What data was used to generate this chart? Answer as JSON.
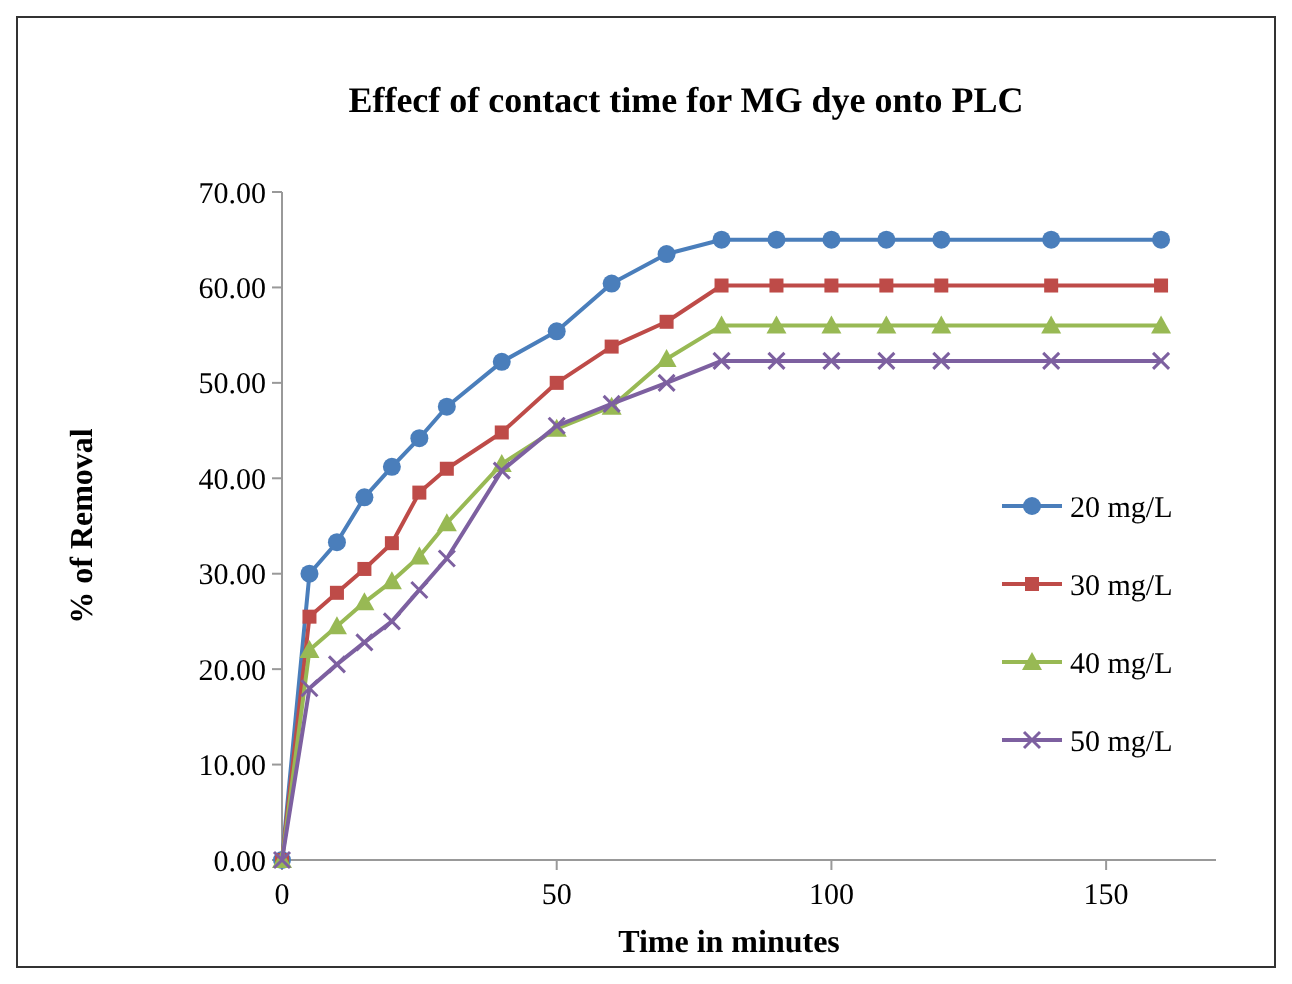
{
  "chart_data": {
    "type": "line",
    "title": "Effecf of contact time  for MG dye onto PLC",
    "xlabel": "Time in minutes",
    "ylabel": "% of Removal",
    "x": [
      0,
      5,
      10,
      15,
      20,
      25,
      30,
      40,
      50,
      60,
      70,
      80,
      90,
      100,
      110,
      120,
      140,
      160
    ],
    "xlim": [
      0,
      170
    ],
    "xticks": [
      0,
      50,
      100,
      150
    ],
    "ylim": [
      0,
      70
    ],
    "yticks": [
      {
        "value": 0,
        "label": "0.00"
      },
      {
        "value": 10,
        "label": "10.00"
      },
      {
        "value": 20,
        "label": "20.00"
      },
      {
        "value": 30,
        "label": "30.00"
      },
      {
        "value": 40,
        "label": "40.00"
      },
      {
        "value": 50,
        "label": "50.00"
      },
      {
        "value": 60,
        "label": "60.00"
      },
      {
        "value": 70,
        "label": "70.00"
      }
    ],
    "grid": false,
    "legend": "right",
    "series": [
      {
        "name": "20 mg/L",
        "color": "#4a7ebb",
        "marker": "circle",
        "values": [
          0,
          30.0,
          33.3,
          38.0,
          41.2,
          44.2,
          47.5,
          52.2,
          55.4,
          60.4,
          63.5,
          65.0,
          65.0,
          65.0,
          65.0,
          65.0,
          65.0,
          65.0
        ]
      },
      {
        "name": "30 mg/L",
        "color": "#be4b48",
        "marker": "square",
        "values": [
          0,
          25.5,
          28.0,
          30.5,
          33.2,
          38.5,
          41.0,
          44.8,
          50.0,
          53.8,
          56.4,
          60.2,
          60.2,
          60.2,
          60.2,
          60.2,
          60.2,
          60.2
        ]
      },
      {
        "name": "40 mg/L",
        "color": "#98b954",
        "marker": "triangle",
        "values": [
          0,
          22.0,
          24.5,
          27.0,
          29.2,
          31.8,
          35.3,
          41.5,
          45.2,
          47.5,
          52.5,
          56.0,
          56.0,
          56.0,
          56.0,
          56.0,
          56.0,
          56.0
        ]
      },
      {
        "name": "50 mg/L",
        "color": "#7d60a0",
        "marker": "cross",
        "values": [
          0,
          18.0,
          20.5,
          22.8,
          25.0,
          28.3,
          31.6,
          40.8,
          45.5,
          47.8,
          50.0,
          52.3,
          52.3,
          52.3,
          52.3,
          52.3,
          52.3,
          52.3
        ]
      }
    ]
  }
}
